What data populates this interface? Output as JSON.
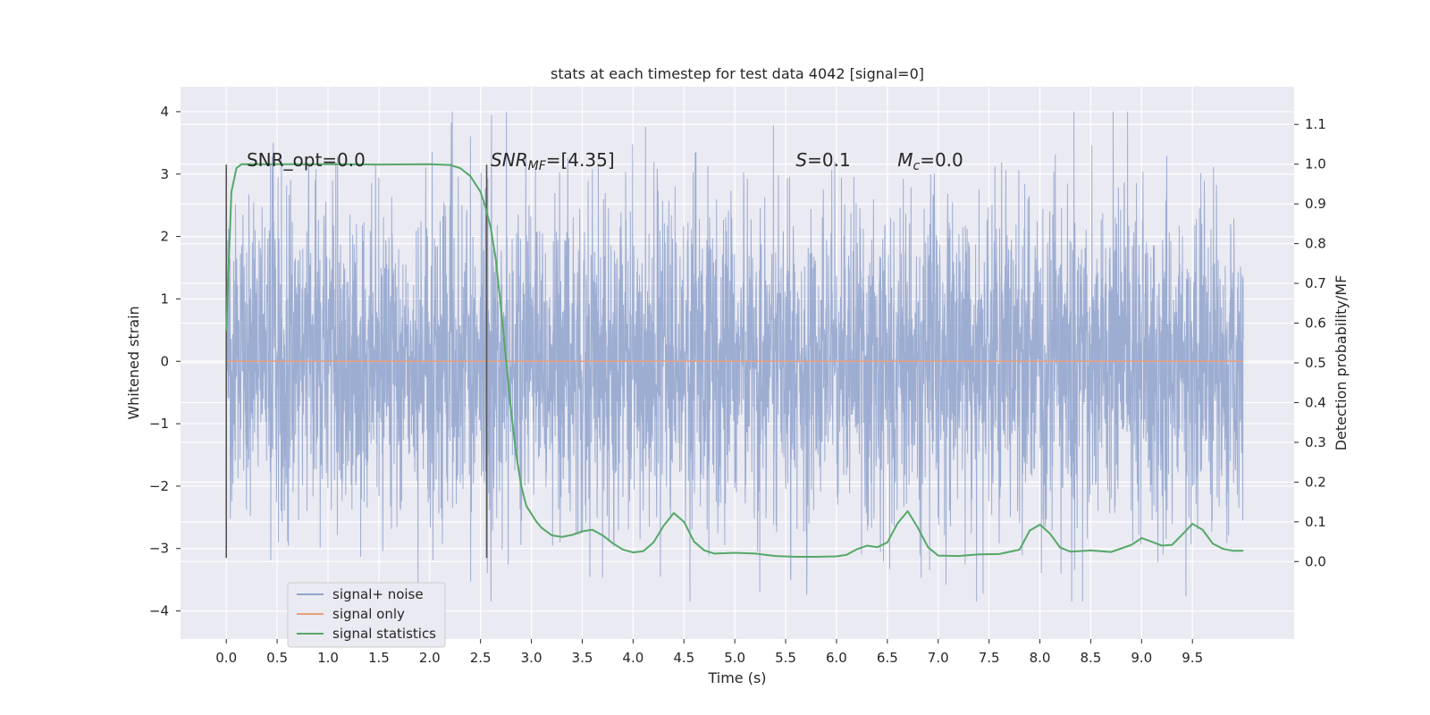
{
  "chart_data": {
    "type": "line",
    "title": "stats at each timestep for test data 4042 [signal=0]",
    "xlabel": "Time (s)",
    "ylabel": "Whitened strain",
    "y2label": "Detection probability/MF",
    "xlim": [
      -0.45,
      10.5
    ],
    "ylim": [
      -4.45,
      4.4
    ],
    "y2lim": [
      -0.195,
      1.195
    ],
    "x_ticks": [
      "0.0",
      "0.5",
      "1.0",
      "1.5",
      "2.0",
      "2.5",
      "3.0",
      "3.5",
      "4.0",
      "4.5",
      "5.0",
      "5.5",
      "6.0",
      "6.5",
      "7.0",
      "7.5",
      "8.0",
      "8.5",
      "9.0",
      "9.5"
    ],
    "y_ticks": [
      "4",
      "3",
      "2",
      "1",
      "0",
      "−1",
      "−2",
      "−3",
      "−4"
    ],
    "y2_ticks": [
      "1.1",
      "1.0",
      "0.9",
      "0.8",
      "0.7",
      "0.6",
      "0.5",
      "0.4",
      "0.3",
      "0.2",
      "0.1",
      "0.0"
    ],
    "grid": true,
    "legend_position": "lower-left",
    "noise": {
      "t_start": 0.0,
      "t_end": 10.0,
      "typical_amplitude": 1.3,
      "peak_range": [
        -3.85,
        4.0
      ]
    },
    "vlines": [
      {
        "x": 0.0,
        "ymin": -3.15,
        "ymax": 3.15
      },
      {
        "x": 2.56,
        "ymin": -3.15,
        "ymax": 3.15
      }
    ],
    "annotations": [
      {
        "text": "SNR_opt=0.0",
        "x": 0.2,
        "y": 3.1
      },
      {
        "text": "SNR_MF=[4.35]",
        "x": 2.6,
        "y": 3.1
      },
      {
        "text": "S=0.1",
        "x": 5.6,
        "y": 3.1
      },
      {
        "text": "M_c=0.0",
        "x": 6.6,
        "y": 3.1
      }
    ],
    "series": [
      {
        "name": "signal+ noise",
        "color": "#8fa2cc",
        "axis": "left",
        "kind": "noise"
      },
      {
        "name": "signal only",
        "color": "#e8a07d",
        "axis": "left",
        "x": [
          0.0,
          10.0
        ],
        "values": [
          0.0,
          0.0
        ]
      },
      {
        "name": "signal statistics",
        "color": "#55a868",
        "axis": "right",
        "x": [
          0.0,
          0.05,
          0.1,
          0.15,
          0.2,
          0.3,
          0.5,
          1.0,
          1.5,
          2.0,
          2.2,
          2.3,
          2.4,
          2.5,
          2.55,
          2.6,
          2.65,
          2.7,
          2.75,
          2.8,
          2.85,
          2.9,
          2.95,
          3.0,
          3.05,
          3.1,
          3.2,
          3.3,
          3.4,
          3.5,
          3.6,
          3.7,
          3.8,
          3.9,
          4.0,
          4.1,
          4.2,
          4.3,
          4.4,
          4.5,
          4.6,
          4.7,
          4.8,
          5.0,
          5.2,
          5.4,
          5.6,
          5.8,
          6.0,
          6.1,
          6.2,
          6.3,
          6.4,
          6.5,
          6.6,
          6.7,
          6.8,
          6.9,
          7.0,
          7.2,
          7.4,
          7.6,
          7.8,
          7.9,
          8.0,
          8.1,
          8.2,
          8.3,
          8.5,
          8.7,
          8.9,
          9.0,
          9.1,
          9.2,
          9.3,
          9.4,
          9.5,
          9.6,
          9.7,
          9.8,
          9.9,
          10.0
        ],
        "values": [
          0.58,
          0.93,
          0.99,
          1.0,
          1.0,
          1.0,
          1.0,
          1.0,
          0.999,
          1.0,
          0.998,
          0.99,
          0.97,
          0.93,
          0.89,
          0.84,
          0.76,
          0.64,
          0.51,
          0.38,
          0.27,
          0.19,
          0.14,
          0.12,
          0.1,
          0.085,
          0.066,
          0.062,
          0.067,
          0.076,
          0.08,
          0.066,
          0.046,
          0.03,
          0.023,
          0.026,
          0.048,
          0.09,
          0.122,
          0.1,
          0.05,
          0.028,
          0.02,
          0.022,
          0.02,
          0.014,
          0.012,
          0.012,
          0.013,
          0.017,
          0.031,
          0.04,
          0.036,
          0.048,
          0.096,
          0.127,
          0.085,
          0.036,
          0.015,
          0.014,
          0.018,
          0.019,
          0.03,
          0.078,
          0.093,
          0.07,
          0.035,
          0.025,
          0.028,
          0.024,
          0.042,
          0.059,
          0.05,
          0.04,
          0.042,
          0.068,
          0.095,
          0.08,
          0.045,
          0.032,
          0.027,
          0.027
        ]
      }
    ]
  }
}
